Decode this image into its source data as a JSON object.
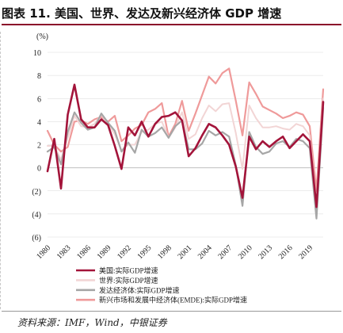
{
  "title": "图表 11. 美国、世界、发达及新兴经济体 GDP 增速",
  "source": "资料来源：IMF，Wind，中银证券",
  "colors": {
    "accent_rule": "#8b0a2a",
    "usa": "#a3143a",
    "world": "#f2d5d5",
    "advanced": "#a6a6a6",
    "emde": "#ef9a9a",
    "grid": "#d9d9d9",
    "zero_line": "#bfbfbf"
  },
  "chart_data": {
    "type": "line",
    "unit_label": "(%)",
    "xlabel": "",
    "ylabel": "",
    "ylim": [
      -6,
      10
    ],
    "yticks": [
      {
        "v": 10,
        "label": "10"
      },
      {
        "v": 8,
        "label": "8"
      },
      {
        "v": 6,
        "label": "6"
      },
      {
        "v": 4,
        "label": "4"
      },
      {
        "v": 2,
        "label": "2"
      },
      {
        "v": 0,
        "label": "0"
      },
      {
        "v": -2,
        "label": "(2)"
      },
      {
        "v": -4,
        "label": "(4)"
      },
      {
        "v": -6,
        "label": "(6)"
      }
    ],
    "x": [
      1980,
      1981,
      1982,
      1983,
      1984,
      1985,
      1986,
      1987,
      1988,
      1989,
      1990,
      1991,
      1992,
      1993,
      1994,
      1995,
      1996,
      1997,
      1998,
      1999,
      2000,
      2001,
      2002,
      2003,
      2004,
      2005,
      2006,
      2007,
      2008,
      2009,
      2010,
      2011,
      2012,
      2013,
      2014,
      2015,
      2016,
      2017,
      2018,
      2019,
      2020,
      2021
    ],
    "xticks": [
      "1980",
      "1983",
      "1986",
      "1989",
      "1992",
      "1995",
      "1998",
      "2001",
      "2004",
      "2007",
      "2010",
      "2013",
      "2016",
      "2019"
    ],
    "grid": "horizontal",
    "legend_position": "bottom",
    "series": [
      {
        "name": "美国:实际GDP增速",
        "color_key": "usa",
        "values": [
          -0.3,
          2.5,
          -1.8,
          4.6,
          7.2,
          4.2,
          3.5,
          3.5,
          4.2,
          3.7,
          1.9,
          -0.1,
          3.5,
          2.8,
          4.0,
          2.7,
          3.8,
          4.4,
          4.5,
          4.8,
          4.1,
          1.0,
          1.7,
          2.8,
          3.8,
          3.5,
          2.8,
          2.0,
          0.1,
          -2.6,
          2.7,
          1.6,
          2.3,
          1.8,
          2.3,
          2.7,
          1.7,
          2.3,
          2.9,
          2.3,
          -3.4,
          5.7
        ]
      },
      {
        "name": "世界:实际GDP增速",
        "color_key": "world",
        "values": [
          1.9,
          1.9,
          0.7,
          2.6,
          4.5,
          3.6,
          3.5,
          3.8,
          4.6,
          3.8,
          2.9,
          1.5,
          2.0,
          2.0,
          3.1,
          3.3,
          3.8,
          4.0,
          2.6,
          3.5,
          4.8,
          2.5,
          2.9,
          4.3,
          5.4,
          4.9,
          5.5,
          5.6,
          3.0,
          -0.1,
          5.4,
          4.3,
          3.5,
          3.5,
          3.6,
          3.4,
          3.3,
          3.8,
          3.6,
          2.8,
          -3.1,
          6.0
        ]
      },
      {
        "name": "发达经济体:实际GDP增速",
        "color_key": "advanced",
        "values": [
          1.4,
          1.8,
          0.3,
          3.1,
          4.8,
          3.9,
          3.3,
          3.5,
          4.7,
          3.9,
          3.2,
          1.4,
          2.2,
          1.3,
          3.3,
          2.7,
          3.0,
          3.5,
          2.6,
          3.6,
          4.1,
          1.6,
          1.6,
          2.1,
          3.2,
          2.8,
          3.1,
          2.7,
          0.2,
          -3.3,
          3.1,
          1.8,
          1.2,
          1.4,
          2.1,
          2.3,
          1.8,
          2.5,
          2.3,
          1.7,
          -4.4,
          5.2
        ]
      },
      {
        "name": "新兴市场和发展中经济体(EMDE):实际GDP增速",
        "color_key": "emde",
        "values": [
          3.2,
          2.0,
          1.4,
          1.8,
          4.0,
          4.1,
          3.8,
          4.2,
          4.4,
          4.0,
          4.5,
          2.3,
          2.8,
          3.4,
          3.7,
          4.8,
          5.1,
          5.6,
          2.7,
          3.8,
          5.8,
          3.2,
          4.7,
          6.3,
          7.9,
          7.3,
          8.2,
          8.6,
          5.8,
          2.8,
          7.4,
          6.4,
          5.3,
          5.0,
          4.7,
          4.3,
          4.5,
          4.8,
          4.6,
          3.6,
          -2.0,
          6.8
        ]
      }
    ]
  }
}
